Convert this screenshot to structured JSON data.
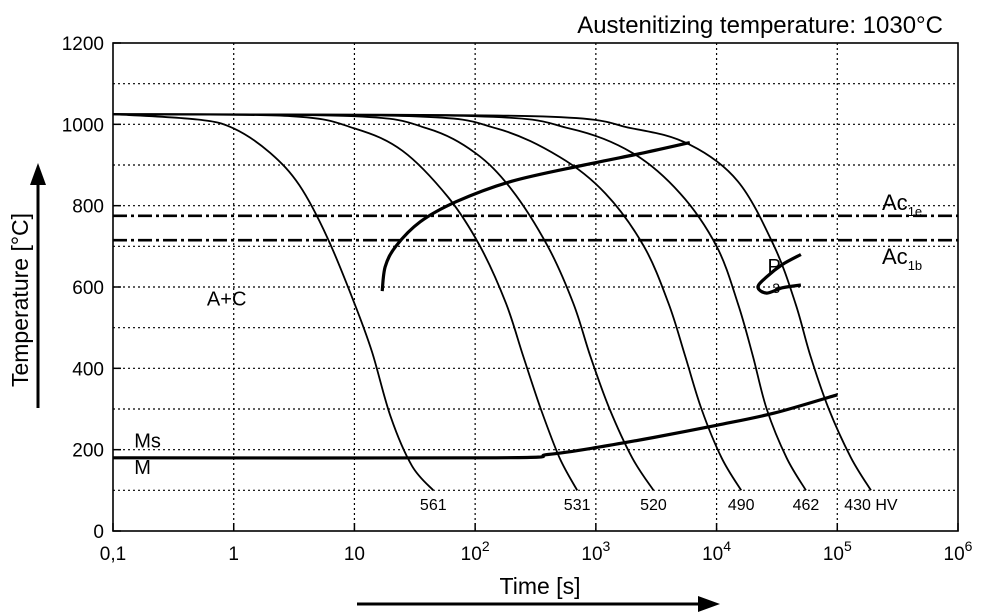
{
  "chart_data": {
    "type": "line",
    "title": "Austenitizing temperature: 1030°C",
    "xlabel": "Time [s]",
    "ylabel": "Temperature [°C]",
    "x_scale": "log",
    "xlim": [
      0.1,
      1000000
    ],
    "ylim": [
      0,
      1200
    ],
    "x_tick_labels": [
      {
        "value": 0.1,
        "base": "0,1",
        "exp": ""
      },
      {
        "value": 1,
        "base": "1",
        "exp": ""
      },
      {
        "value": 10,
        "base": "10",
        "exp": ""
      },
      {
        "value": 100,
        "base": "10",
        "exp": "2"
      },
      {
        "value": 1000,
        "base": "10",
        "exp": "3"
      },
      {
        "value": 10000,
        "base": "10",
        "exp": "4"
      },
      {
        "value": 100000,
        "base": "10",
        "exp": "5"
      },
      {
        "value": 1000000,
        "base": "10",
        "exp": "6"
      }
    ],
    "y_ticks": [
      0,
      200,
      400,
      600,
      800,
      1000,
      1200
    ],
    "y_tick_labels": [
      "0",
      "200",
      "400",
      "600",
      "800",
      "1000",
      "1200"
    ],
    "grid": true,
    "lines": [
      {
        "base": "Ac",
        "sub": "1e",
        "value": 775
      },
      {
        "base": "Ac",
        "sub": "1b",
        "value": 715
      }
    ],
    "region_labels": [
      {
        "text": "A+C",
        "x": 0.6,
        "y": 555
      },
      {
        "text": "Ms",
        "x": 0.15,
        "y": 205
      },
      {
        "text": "M",
        "x": 0.15,
        "y": 140
      }
    ],
    "phase_field": {
      "text": "P",
      "sub": "3",
      "x": 30000,
      "y": 635
    },
    "cooling_curves": [
      {
        "hv": "561",
        "points": [
          [
            0.1,
            1025
          ],
          [
            0.5,
            1012
          ],
          [
            1,
            990
          ],
          [
            2,
            930
          ],
          [
            3.5,
            850
          ],
          [
            6,
            720
          ],
          [
            10,
            560
          ],
          [
            14,
            440
          ],
          [
            20,
            280
          ],
          [
            30,
            160
          ],
          [
            45,
            100
          ]
        ]
      },
      {
        "hv": "531",
        "points": [
          [
            0.1,
            1025
          ],
          [
            3,
            1020
          ],
          [
            10,
            990
          ],
          [
            25,
            935
          ],
          [
            60,
            820
          ],
          [
            110,
            700
          ],
          [
            180,
            560
          ],
          [
            250,
            430
          ],
          [
            350,
            300
          ],
          [
            500,
            180
          ],
          [
            700,
            100
          ]
        ]
      },
      {
        "hv": "520",
        "points": [
          [
            0.1,
            1025
          ],
          [
            10,
            1020
          ],
          [
            40,
            990
          ],
          [
            100,
            930
          ],
          [
            200,
            840
          ],
          [
            400,
            700
          ],
          [
            650,
            560
          ],
          [
            900,
            430
          ],
          [
            1300,
            300
          ],
          [
            2000,
            180
          ],
          [
            3000,
            100
          ]
        ]
      },
      {
        "hv": "490",
        "points": [
          [
            0.1,
            1025
          ],
          [
            30,
            1020
          ],
          [
            150,
            990
          ],
          [
            500,
            920
          ],
          [
            1200,
            830
          ],
          [
            2500,
            700
          ],
          [
            4000,
            560
          ],
          [
            5500,
            430
          ],
          [
            7500,
            300
          ],
          [
            11000,
            180
          ],
          [
            16000,
            100
          ]
        ]
      },
      {
        "hv": "462",
        "points": [
          [
            0.1,
            1025
          ],
          [
            100,
            1020
          ],
          [
            600,
            990
          ],
          [
            2000,
            930
          ],
          [
            5000,
            830
          ],
          [
            10000,
            700
          ],
          [
            15000,
            560
          ],
          [
            20000,
            430
          ],
          [
            26000,
            300
          ],
          [
            38000,
            180
          ],
          [
            55000,
            100
          ]
        ]
      },
      {
        "hv": "430 HV",
        "points": [
          [
            0.1,
            1025
          ],
          [
            300,
            1020
          ],
          [
            2000,
            990
          ],
          [
            6000,
            950
          ],
          [
            15000,
            860
          ],
          [
            30000,
            700
          ],
          [
            45000,
            560
          ],
          [
            60000,
            430
          ],
          [
            85000,
            300
          ],
          [
            130000,
            180
          ],
          [
            190000,
            100
          ]
        ]
      }
    ],
    "thick_curves": [
      {
        "name": "start",
        "points": [
          [
            17,
            590
          ],
          [
            18,
            650
          ],
          [
            22,
            700
          ],
          [
            35,
            760
          ],
          [
            70,
            810
          ],
          [
            200,
            860
          ],
          [
            800,
            900
          ],
          [
            2500,
            930
          ],
          [
            6000,
            955
          ]
        ]
      },
      {
        "name": "ms",
        "points": [
          [
            0.1,
            180
          ],
          [
            150,
            180
          ],
          [
            400,
            188
          ],
          [
            1000,
            205
          ],
          [
            3000,
            230
          ],
          [
            10000,
            260
          ],
          [
            30000,
            290
          ],
          [
            100000,
            335
          ]
        ]
      },
      {
        "name": "pearlite",
        "points": [
          [
            50000,
            680
          ],
          [
            35000,
            655
          ],
          [
            26000,
            625
          ],
          [
            22000,
            600
          ],
          [
            26000,
            585
          ],
          [
            35000,
            598
          ],
          [
            50000,
            605
          ]
        ]
      }
    ]
  }
}
